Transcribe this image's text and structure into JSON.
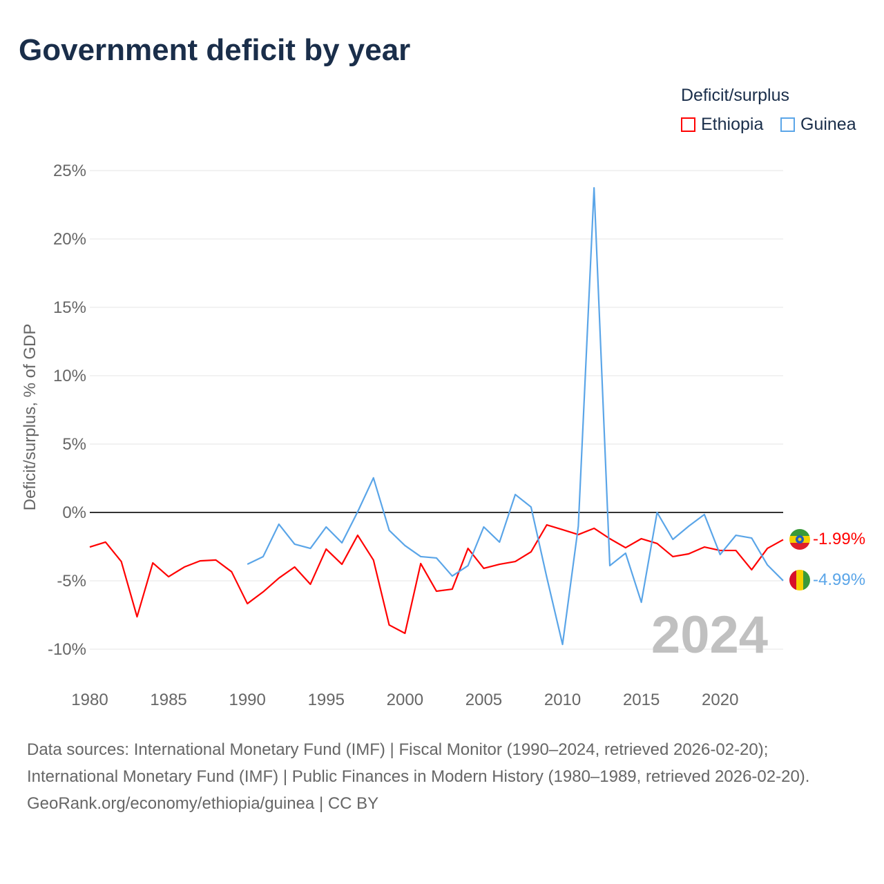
{
  "title": "Government deficit by year",
  "legend": {
    "title": "Deficit/surplus",
    "items": [
      {
        "name": "Ethiopia",
        "color": "#ff0000"
      },
      {
        "name": "Guinea",
        "color": "#5aa5e8"
      }
    ]
  },
  "chart_data": {
    "type": "line",
    "title": "Government deficit by year",
    "xlabel": "",
    "ylabel": "Deficit/surplus, % of GDP",
    "xlim": [
      1980,
      2024
    ],
    "ylim": [
      -10,
      25
    ],
    "x_ticks": [
      "1980",
      "1985",
      "1990",
      "1995",
      "2000",
      "2005",
      "2010",
      "2015",
      "2020"
    ],
    "y_ticks": [
      "25%",
      "20%",
      "15%",
      "10%",
      "5%",
      "0%",
      "-5%",
      "-10%"
    ],
    "y_tick_values": [
      25,
      20,
      15,
      10,
      5,
      0,
      -5,
      -10
    ],
    "grid": true,
    "watermark_year": "2024",
    "series": [
      {
        "name": "Ethiopia",
        "color": "#ff0000",
        "end_label": "-1.99%",
        "start_year": 1980,
        "values": [
          -2.53,
          -2.17,
          -3.59,
          -7.63,
          -3.69,
          -4.7,
          -3.99,
          -3.54,
          -3.48,
          -4.34,
          -6.67,
          -5.81,
          -4.8,
          -3.99,
          -5.25,
          -2.68,
          -3.79,
          -1.67,
          -3.48,
          -8.23,
          -8.84,
          -3.74,
          -5.76,
          -5.61,
          -2.63,
          -4.09,
          -3.79,
          -3.59,
          -2.88,
          -0.91,
          -1.26,
          -1.62,
          -1.16,
          -1.92,
          -2.58,
          -1.92,
          -2.27,
          -3.23,
          -3.03,
          -2.53,
          -2.78,
          -2.78,
          -4.19,
          -2.63,
          -1.99
        ]
      },
      {
        "name": "Guinea",
        "color": "#5aa5e8",
        "end_label": "-4.99%",
        "start_year": 1990,
        "values": [
          -3.79,
          -3.23,
          -0.86,
          -2.32,
          -2.63,
          -1.06,
          -2.22,
          0.05,
          2.53,
          -1.31,
          -2.42,
          -3.23,
          -3.33,
          -4.65,
          -3.89,
          -1.06,
          -2.17,
          1.31,
          0.4,
          -4.75,
          -9.65,
          -1.01,
          23.74,
          -3.89,
          -2.98,
          -6.57,
          0.0,
          -1.97,
          -1.01,
          -0.15,
          -3.08,
          -1.67,
          -1.87,
          -3.84,
          -4.99
        ]
      }
    ]
  },
  "footer": {
    "sources": "Data sources: International Monetary Fund (IMF) | Fiscal Monitor (1990–2024, retrieved 2026-02-20); International Monetary Fund (IMF) | Public Finances in Modern History (1980–1989, retrieved 2026-02-20).",
    "credit": "GeoRank.org/economy/ethiopia/guinea | CC BY"
  }
}
